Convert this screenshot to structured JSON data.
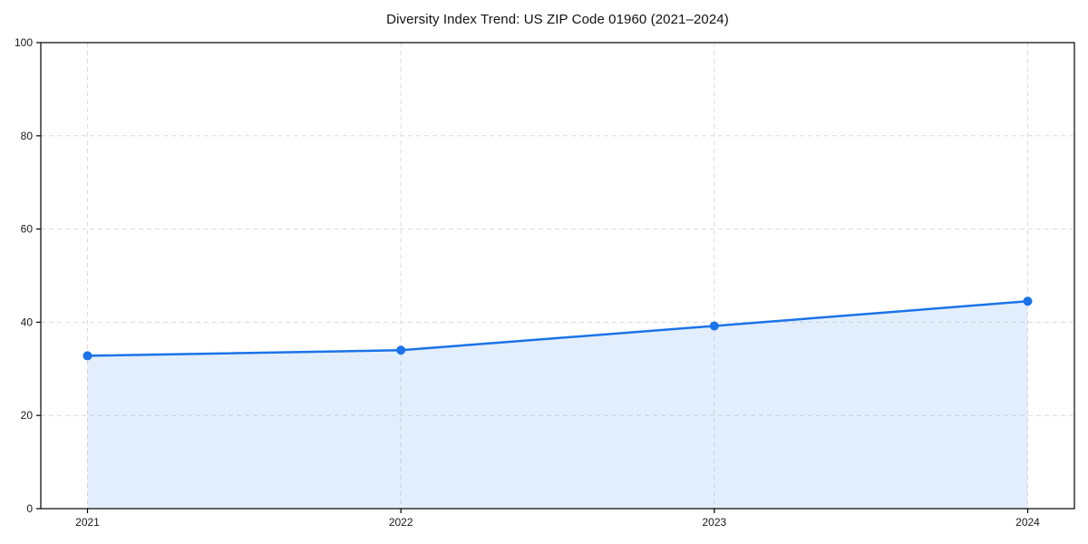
{
  "chart_data": {
    "type": "line",
    "title": "Diversity Index Trend: US ZIP Code 01960 (2021–2024)",
    "categories": [
      "2021",
      "2022",
      "2023",
      "2024"
    ],
    "x": [
      2021,
      2022,
      2023,
      2024
    ],
    "series": [
      {
        "name": "Diversity Index",
        "values": [
          32.8,
          34.0,
          39.2,
          44.5
        ]
      }
    ],
    "xlabel": "",
    "ylabel": "",
    "ylim": [
      0,
      100
    ],
    "yticks": [
      0,
      20,
      40,
      60,
      80,
      100
    ],
    "grid": true,
    "grid_style": "dashed",
    "legend": false,
    "area_fill": true,
    "marker": "circle",
    "colors": {
      "line": "#1a73e8",
      "marker": "#1a73e8",
      "fill": "#1a73e8",
      "fill_opacity": 0.12,
      "grid": "#dcdcdc",
      "spine": "#000000",
      "tick_text": "#1a1a1a",
      "background": "#ffffff"
    }
  }
}
